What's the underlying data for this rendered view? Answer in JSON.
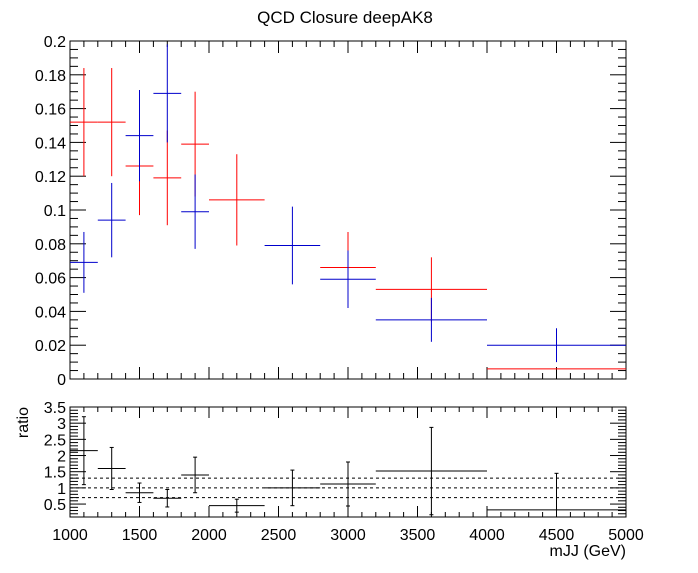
{
  "chart_data": [
    {
      "type": "scatter",
      "title": "QCD Closure deepAK8",
      "xlabel": "",
      "ylabel": "",
      "xlim": [
        1000,
        5000
      ],
      "ylim": [
        0,
        0.2
      ],
      "x_ticks": [
        "1000",
        "1500",
        "2000",
        "2500",
        "3000",
        "3500",
        "4000",
        "4500",
        "5000"
      ],
      "y_ticks": [
        "0",
        "0.02",
        "0.04",
        "0.06",
        "0.08",
        "0.1",
        "0.12",
        "0.14",
        "0.16",
        "0.18",
        "0.2"
      ],
      "grid": false,
      "series": [
        {
          "color": "#ff0000",
          "points": [
            {
              "x_low": 1000,
              "x_high": 1200,
              "y": 0.152,
              "err": 0.032
            },
            {
              "x_low": 1200,
              "x_high": 1400,
              "y": 0.152,
              "err": 0.032
            },
            {
              "x_low": 1400,
              "x_high": 1600,
              "y": 0.126,
              "err": 0.029
            },
            {
              "x_low": 1600,
              "x_high": 1800,
              "y": 0.119,
              "err": 0.028
            },
            {
              "x_low": 1800,
              "x_high": 2000,
              "y": 0.139,
              "err": 0.031
            },
            {
              "x_low": 2000,
              "x_high": 2400,
              "y": 0.106,
              "err": 0.027
            },
            {
              "x_low": 2800,
              "x_high": 3200,
              "y": 0.066,
              "err": 0.021
            },
            {
              "x_low": 3200,
              "x_high": 4000,
              "y": 0.053,
              "err": 0.019
            },
            {
              "x_low": 4000,
              "x_high": 5000,
              "y": 0.006,
              "err": 0.0
            }
          ]
        },
        {
          "color": "#0000cc",
          "points": [
            {
              "x_low": 1000,
              "x_high": 1200,
              "y": 0.069,
              "err": 0.018
            },
            {
              "x_low": 1200,
              "x_high": 1400,
              "y": 0.094,
              "err": 0.022
            },
            {
              "x_low": 1400,
              "x_high": 1600,
              "y": 0.144,
              "err": 0.027
            },
            {
              "x_low": 1600,
              "x_high": 1800,
              "y": 0.169,
              "err": 0.029
            },
            {
              "x_low": 1800,
              "x_high": 2000,
              "y": 0.099,
              "err": 0.022
            },
            {
              "x_low": 2400,
              "x_high": 2800,
              "y": 0.079,
              "err": 0.023
            },
            {
              "x_low": 2800,
              "x_high": 3200,
              "y": 0.059,
              "err": 0.017
            },
            {
              "x_low": 3200,
              "x_high": 4000,
              "y": 0.035,
              "err": 0.013
            },
            {
              "x_low": 4000,
              "x_high": 5000,
              "y": 0.02,
              "err": 0.01
            }
          ]
        }
      ]
    },
    {
      "type": "scatter",
      "title": "",
      "xlabel": "mJJ (GeV)",
      "ylabel": "ratio",
      "xlim": [
        1000,
        5000
      ],
      "ylim": [
        0.1,
        3.5
      ],
      "x_ticks": [
        "1000",
        "1500",
        "2000",
        "2500",
        "3000",
        "3500",
        "4000",
        "4500",
        "5000"
      ],
      "y_ticks": [
        "0.5",
        "1",
        "1.5",
        "2",
        "2.5",
        "3",
        "3.5"
      ],
      "reference_lines": [
        0.7,
        1.0,
        1.3
      ],
      "grid": false,
      "series": [
        {
          "color": "#000000",
          "points": [
            {
              "x_low": 1000,
              "x_high": 1200,
              "y": 2.15,
              "err": 1.05
            },
            {
              "x_low": 1200,
              "x_high": 1400,
              "y": 1.6,
              "err": 0.65
            },
            {
              "x_low": 1400,
              "x_high": 1600,
              "y": 0.85,
              "err": 0.3
            },
            {
              "x_low": 1600,
              "x_high": 1800,
              "y": 0.68,
              "err": 0.27
            },
            {
              "x_low": 1800,
              "x_high": 2000,
              "y": 1.4,
              "err": 0.55
            },
            {
              "x_low": 2000,
              "x_high": 2400,
              "y": 0.45,
              "err": 0.2
            },
            {
              "x_low": 2400,
              "x_high": 2800,
              "y": 1.0,
              "err": 0.55
            },
            {
              "x_low": 2800,
              "x_high": 3200,
              "y": 1.12,
              "err": 0.68
            },
            {
              "x_low": 3200,
              "x_high": 4000,
              "y": 1.52,
              "err": 1.35
            },
            {
              "x_low": 4000,
              "x_high": 5000,
              "y": 0.32,
              "err": 1.13
            }
          ]
        }
      ]
    }
  ]
}
